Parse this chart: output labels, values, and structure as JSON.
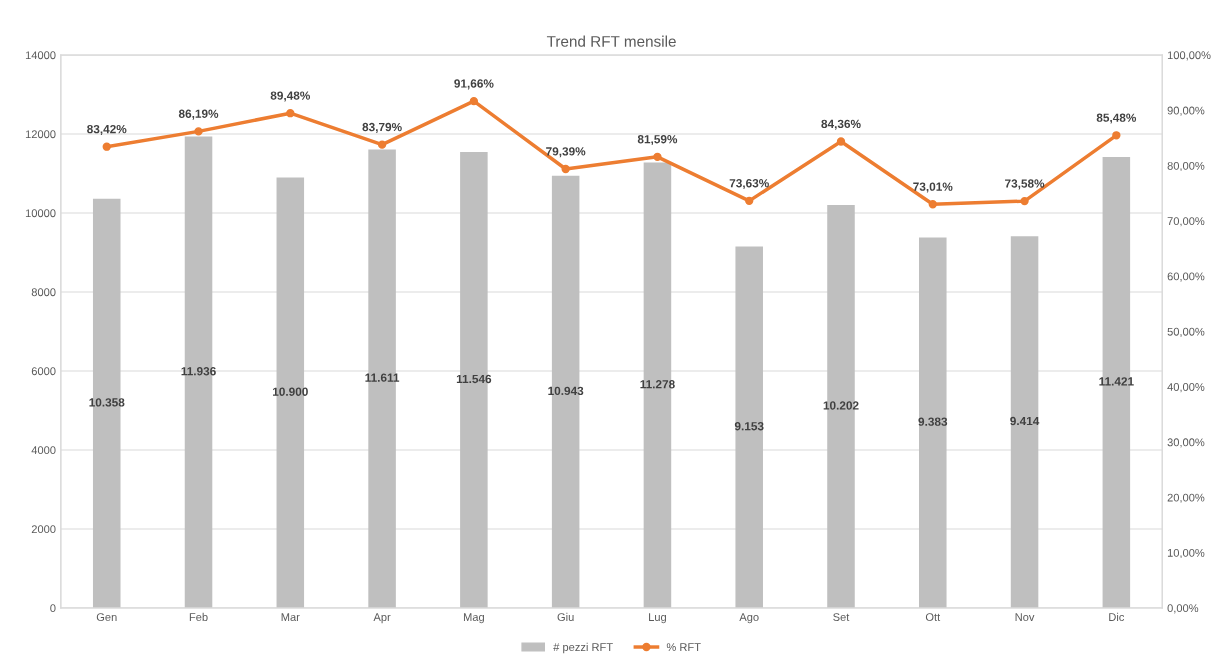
{
  "chart_data": {
    "type": "bar",
    "title": "Trend RFT mensile",
    "categories": [
      "Gen",
      "Feb",
      "Mar",
      "Apr",
      "Mag",
      "Giu",
      "Lug",
      "Ago",
      "Set",
      "Ott",
      "Nov",
      "Dic"
    ],
    "series": [
      {
        "name": "# pezzi RFT",
        "color": "#bfbfbf",
        "values": [
          10358,
          11936,
          10900,
          11611,
          11546,
          10943,
          11278,
          9153,
          10202,
          9383,
          9414,
          11421
        ],
        "value_labels": [
          "10.358",
          "11.936",
          "10.900",
          "11.611",
          "11.546",
          "10.943",
          "11.278",
          "9.153",
          "10.202",
          "9.383",
          "9.414",
          "11.421"
        ]
      },
      {
        "name": "% RFT",
        "type": "line",
        "axis": "y2",
        "color": "#ed7d31",
        "values": [
          83.42,
          86.19,
          89.48,
          83.79,
          91.66,
          79.39,
          81.59,
          73.63,
          84.36,
          73.01,
          73.58,
          85.48
        ],
        "value_labels": [
          "83,42%",
          "86,19%",
          "89,48%",
          "83,79%",
          "91,66%",
          "79,39%",
          "81,59%",
          "73,63%",
          "84,36%",
          "73,01%",
          "73,58%",
          "85,48%"
        ]
      }
    ],
    "ylim": [
      0,
      14000
    ],
    "yticks": [
      0,
      2000,
      4000,
      6000,
      8000,
      10000,
      12000,
      14000
    ],
    "y2lim": [
      0,
      100
    ],
    "y2ticks": [
      {
        "value": 0,
        "label": "0,00%"
      },
      {
        "value": 10,
        "label": "10,00%"
      },
      {
        "value": 20,
        "label": "20,00%"
      },
      {
        "value": 30,
        "label": "30,00%"
      },
      {
        "value": 40,
        "label": "40,00%"
      },
      {
        "value": 50,
        "label": "50,00%"
      },
      {
        "value": 60,
        "label": "60,00%"
      },
      {
        "value": 70,
        "label": "70,00%"
      },
      {
        "value": 80,
        "label": "80,00%"
      },
      {
        "value": 90,
        "label": "90,00%"
      },
      {
        "value": 100,
        "label": "100,00%"
      }
    ],
    "grid": "y",
    "legend": "bottom",
    "marker": "circle",
    "line_style": "solid"
  }
}
